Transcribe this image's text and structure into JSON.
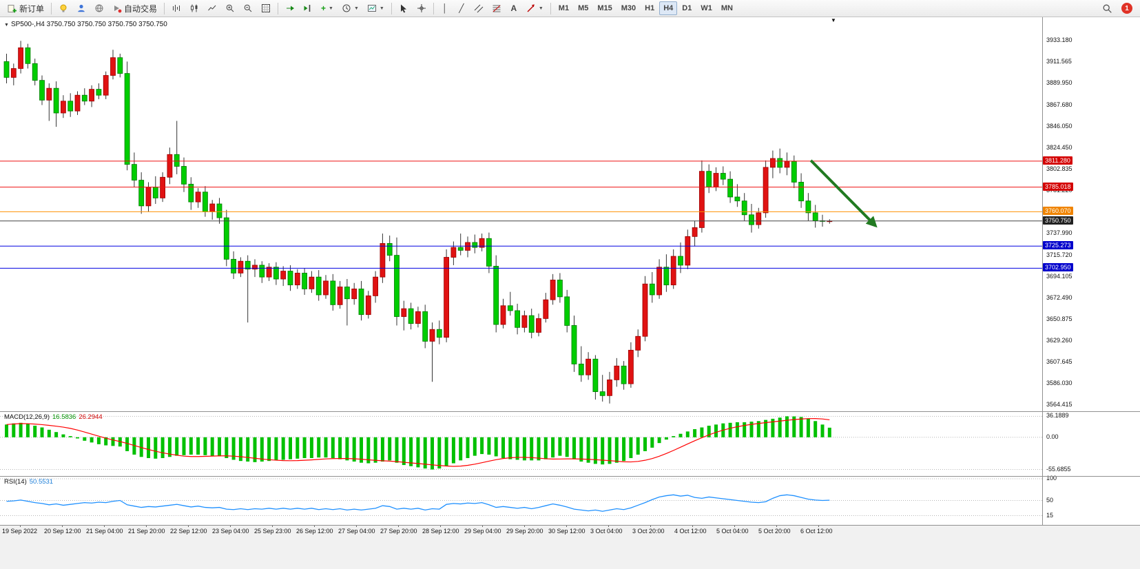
{
  "toolbar": {
    "new_order_label": "新订单",
    "auto_trading_label": "自动交易",
    "timeframes": [
      "M1",
      "M5",
      "M15",
      "M30",
      "H1",
      "H4",
      "D1",
      "W1",
      "MN"
    ],
    "active_timeframe": "H4",
    "badge_count": "1"
  },
  "chart": {
    "symbol": "SP500-",
    "period": "H4",
    "title": "SP500-,H4 3750.750 3750.750 3750.750 3750.750",
    "shift_marker": "▼"
  },
  "indicators": {
    "macd": {
      "name": "MACD(12,26,9)",
      "main_value": "16.5836",
      "signal_value": "26.2944",
      "axis_labels": [
        "36.1889",
        "0.00",
        "-55.6855"
      ],
      "axis_values": [
        36.1889,
        0,
        -55.6855
      ]
    },
    "rsi": {
      "name": "RSI(14)",
      "value": "50.5531",
      "axis_labels": [
        "100",
        "50",
        "15"
      ],
      "axis_values": [
        100,
        50,
        15
      ]
    }
  },
  "chart_data": {
    "type": "candlestick",
    "symbol": "SP500-",
    "timeframe": "H4",
    "ylim": [
      3558.2,
      3956.9
    ],
    "grid": false,
    "colors": {
      "up": "#e01212",
      "down": "#00cd00",
      "up_border": "#9b0000",
      "down_border": "#007a00",
      "wick": "#333333",
      "macd_bar": "#00c000",
      "macd_signal": "#ff0000",
      "rsi_line": "#1e90ff"
    },
    "price_labels": [
      "3933.180",
      "3911.565",
      "3889.950",
      "3867.680",
      "3846.050",
      "3824.450",
      "3802.835",
      "3781.220",
      "3759.605",
      "3737.990",
      "3715.720",
      "3694.105",
      "3672.490",
      "3650.875",
      "3629.260",
      "3607.645",
      "3586.030",
      "3564.415"
    ],
    "time_labels": [
      "19 Sep 2022",
      "20 Sep 12:00",
      "21 Sep 04:00",
      "21 Sep 20:00",
      "22 Sep 12:00",
      "23 Sep 04:00",
      "25 Sep 23:00",
      "26 Sep 12:00",
      "27 Sep 04:00",
      "27 Sep 20:00",
      "28 Sep 12:00",
      "29 Sep 04:00",
      "29 Sep 20:00",
      "30 Sep 12:00",
      "3 Oct 04:00",
      "3 Oct 20:00",
      "4 Oct 12:00",
      "5 Oct 04:00",
      "5 Oct 20:00",
      "6 Oct 12:00"
    ],
    "hlines": [
      {
        "name": "resistance-line-1",
        "label": "3811.280",
        "value": 3811.28,
        "color": "#ee1111",
        "tag_color": "#d40000"
      },
      {
        "name": "resistance-line-2",
        "label": "3785.018",
        "value": 3785.018,
        "color": "#ee1111",
        "tag_color": "#d40000"
      },
      {
        "name": "pivot-line-orange",
        "label": "3760.070",
        "value": 3760.07,
        "color": "#ff9100",
        "tag_color": "#f08400"
      },
      {
        "name": "current-price-line",
        "label": "3750.750",
        "value": 3750.75,
        "color": "#444444",
        "tag_color": "#222222"
      },
      {
        "name": "support-line-1",
        "label": "3725.273",
        "value": 3725.273,
        "color": "#0000e0",
        "tag_color": "#0000cc"
      },
      {
        "name": "support-line-2",
        "label": "3702.950",
        "value": 3702.95,
        "color": "#0000e0",
        "tag_color": "#0000cc"
      }
    ],
    "current_price": 3750.75,
    "annotation_arrow": {
      "from_bar": 113.7,
      "from_price": 3812,
      "to_bar": 122.8,
      "to_price": 3746,
      "color": "#217a21"
    },
    "candles": [
      [
        3912,
        3920,
        3890,
        3896
      ],
      [
        3896,
        3910,
        3888,
        3905
      ],
      [
        3905,
        3933,
        3900,
        3926
      ],
      [
        3926,
        3930,
        3905,
        3910
      ],
      [
        3910,
        3915,
        3888,
        3893
      ],
      [
        3893,
        3898,
        3868,
        3873
      ],
      [
        3873,
        3890,
        3852,
        3885
      ],
      [
        3885,
        3892,
        3846,
        3860
      ],
      [
        3860,
        3878,
        3855,
        3872
      ],
      [
        3872,
        3880,
        3856,
        3862
      ],
      [
        3862,
        3882,
        3858,
        3878
      ],
      [
        3878,
        3885,
        3868,
        3872
      ],
      [
        3872,
        3888,
        3866,
        3884
      ],
      [
        3884,
        3890,
        3874,
        3878
      ],
      [
        3878,
        3902,
        3874,
        3898
      ],
      [
        3898,
        3924,
        3894,
        3916
      ],
      [
        3916,
        3920,
        3896,
        3900
      ],
      [
        3900,
        3912,
        3802,
        3808
      ],
      [
        3808,
        3820,
        3785,
        3792
      ],
      [
        3792,
        3800,
        3758,
        3766
      ],
      [
        3766,
        3790,
        3760,
        3785
      ],
      [
        3785,
        3796,
        3768,
        3774
      ],
      [
        3774,
        3800,
        3770,
        3795
      ],
      [
        3795,
        3825,
        3788,
        3818
      ],
      [
        3818,
        3852,
        3798,
        3806
      ],
      [
        3806,
        3815,
        3780,
        3788
      ],
      [
        3788,
        3795,
        3762,
        3770
      ],
      [
        3770,
        3784,
        3764,
        3780
      ],
      [
        3780,
        3786,
        3755,
        3760
      ],
      [
        3760,
        3772,
        3752,
        3768
      ],
      [
        3768,
        3774,
        3748,
        3754
      ],
      [
        3754,
        3762,
        3705,
        3712
      ],
      [
        3712,
        3720,
        3692,
        3698
      ],
      [
        3698,
        3714,
        3694,
        3710
      ],
      [
        3710,
        3716,
        3648,
        3702
      ],
      [
        3702,
        3712,
        3694,
        3706
      ],
      [
        3706,
        3710,
        3688,
        3694
      ],
      [
        3694,
        3708,
        3690,
        3704
      ],
      [
        3704,
        3709,
        3686,
        3692
      ],
      [
        3692,
        3705,
        3685,
        3700
      ],
      [
        3700,
        3706,
        3680,
        3686
      ],
      [
        3686,
        3702,
        3682,
        3698
      ],
      [
        3698,
        3703,
        3676,
        3682
      ],
      [
        3682,
        3700,
        3678,
        3694
      ],
      [
        3694,
        3701,
        3670,
        3676
      ],
      [
        3676,
        3696,
        3672,
        3690
      ],
      [
        3690,
        3697,
        3660,
        3666
      ],
      [
        3666,
        3690,
        3662,
        3684
      ],
      [
        3684,
        3692,
        3645,
        3672
      ],
      [
        3672,
        3688,
        3666,
        3682
      ],
      [
        3682,
        3690,
        3650,
        3656
      ],
      [
        3656,
        3680,
        3652,
        3675
      ],
      [
        3675,
        3700,
        3668,
        3694
      ],
      [
        3694,
        3738,
        3688,
        3728
      ],
      [
        3728,
        3736,
        3710,
        3716
      ],
      [
        3716,
        3734,
        3645,
        3654
      ],
      [
        3654,
        3670,
        3640,
        3662
      ],
      [
        3662,
        3668,
        3641,
        3647
      ],
      [
        3647,
        3664,
        3643,
        3659
      ],
      [
        3659,
        3666,
        3622,
        3629
      ],
      [
        3629,
        3648,
        3588,
        3641
      ],
      [
        3641,
        3650,
        3626,
        3633
      ],
      [
        3633,
        3722,
        3628,
        3714
      ],
      [
        3714,
        3730,
        3706,
        3724
      ],
      [
        3724,
        3738,
        3716,
        3721
      ],
      [
        3721,
        3735,
        3714,
        3729
      ],
      [
        3729,
        3737,
        3718,
        3724
      ],
      [
        3724,
        3738,
        3720,
        3733
      ],
      [
        3733,
        3739,
        3698,
        3705
      ],
      [
        3705,
        3716,
        3638,
        3646
      ],
      [
        3646,
        3672,
        3642,
        3665
      ],
      [
        3665,
        3679,
        3655,
        3660
      ],
      [
        3660,
        3667,
        3636,
        3643
      ],
      [
        3643,
        3660,
        3638,
        3655
      ],
      [
        3655,
        3662,
        3632,
        3638
      ],
      [
        3638,
        3657,
        3634,
        3652
      ],
      [
        3652,
        3678,
        3648,
        3671
      ],
      [
        3671,
        3697,
        3666,
        3691
      ],
      [
        3691,
        3698,
        3668,
        3674
      ],
      [
        3674,
        3681,
        3638,
        3645
      ],
      [
        3645,
        3655,
        3598,
        3606
      ],
      [
        3606,
        3624,
        3588,
        3595
      ],
      [
        3595,
        3618,
        3590,
        3611
      ],
      [
        3611,
        3615,
        3570,
        3578
      ],
      [
        3578,
        3595,
        3568,
        3574
      ],
      [
        3574,
        3598,
        3566,
        3590
      ],
      [
        3590,
        3612,
        3583,
        3604
      ],
      [
        3604,
        3609,
        3580,
        3586
      ],
      [
        3586,
        3628,
        3582,
        3620
      ],
      [
        3620,
        3641,
        3613,
        3634
      ],
      [
        3634,
        3695,
        3629,
        3687
      ],
      [
        3687,
        3699,
        3668,
        3676
      ],
      [
        3676,
        3712,
        3672,
        3704
      ],
      [
        3704,
        3717,
        3679,
        3686
      ],
      [
        3686,
        3722,
        3682,
        3715
      ],
      [
        3715,
        3729,
        3698,
        3706
      ],
      [
        3706,
        3742,
        3702,
        3735
      ],
      [
        3735,
        3751,
        3725,
        3744
      ],
      [
        3744,
        3812,
        3739,
        3801
      ],
      [
        3801,
        3808,
        3779,
        3785
      ],
      [
        3785,
        3805,
        3781,
        3799
      ],
      [
        3799,
        3806,
        3787,
        3793
      ],
      [
        3793,
        3801,
        3769,
        3775
      ],
      [
        3775,
        3788,
        3765,
        3771
      ],
      [
        3771,
        3779,
        3751,
        3757
      ],
      [
        3757,
        3768,
        3739,
        3747
      ],
      [
        3747,
        3764,
        3743,
        3759
      ],
      [
        3759,
        3812,
        3754,
        3805
      ],
      [
        3805,
        3822,
        3794,
        3814
      ],
      [
        3814,
        3824,
        3799,
        3805
      ],
      [
        3805,
        3820,
        3797,
        3811
      ],
      [
        3811,
        3817,
        3784,
        3790
      ],
      [
        3790,
        3799,
        3764,
        3771
      ],
      [
        3771,
        3779,
        3751,
        3759
      ],
      [
        3759,
        3767,
        3744,
        3751
      ],
      [
        3751,
        3757,
        3745,
        3750.75
      ],
      [
        3750.75,
        3752.5,
        3748,
        3750.75
      ]
    ],
    "macd": {
      "params": [
        12,
        26,
        9
      ],
      "range": [
        -67,
        45
      ],
      "current": 16.5836,
      "signal_current": 26.2944,
      "histogram": [
        22,
        24,
        25,
        23,
        20,
        17,
        13,
        9,
        5,
        2,
        -2,
        -6,
        -9,
        -12,
        -14,
        -15,
        -16,
        -24,
        -30,
        -34,
        -36,
        -37,
        -36,
        -34,
        -32,
        -31,
        -30,
        -30,
        -31,
        -32,
        -33,
        -36,
        -39,
        -41,
        -42,
        -43,
        -42,
        -41,
        -40,
        -39,
        -38,
        -37,
        -36,
        -36,
        -35,
        -35,
        -36,
        -38,
        -40,
        -42,
        -44,
        -45,
        -44,
        -42,
        -40,
        -44,
        -48,
        -50,
        -52,
        -54,
        -55.7,
        -54,
        -50,
        -45,
        -40,
        -36,
        -32,
        -29,
        -30,
        -33,
        -36,
        -38,
        -39,
        -40,
        -40,
        -40,
        -38,
        -35,
        -32,
        -34,
        -38,
        -42,
        -44,
        -46,
        -47,
        -46,
        -44,
        -41,
        -36,
        -30,
        -24,
        -18,
        -10,
        -4,
        2,
        6,
        10,
        14,
        17,
        20,
        22,
        24,
        25,
        26,
        26,
        27,
        28,
        30,
        32,
        34,
        36.2,
        36,
        35,
        32,
        28,
        22,
        16.58
      ]
    },
    "rsi": {
      "period": 14,
      "range": [
        0,
        100
      ],
      "current": 50.5531,
      "values": [
        48,
        49,
        51,
        48,
        45,
        43,
        40,
        42,
        39,
        41,
        43,
        45,
        44,
        46,
        45,
        48,
        50,
        40,
        37,
        34,
        36,
        35,
        37,
        39,
        41,
        38,
        35,
        37,
        34,
        33,
        34,
        30,
        29,
        31,
        29,
        31,
        30,
        32,
        30,
        32,
        30,
        32,
        30,
        32,
        29,
        31,
        29,
        31,
        28,
        30,
        28,
        30,
        32,
        38,
        36,
        30,
        32,
        30,
        32,
        28,
        31,
        30,
        41,
        43,
        42,
        44,
        43,
        45,
        40,
        34,
        36,
        34,
        32,
        34,
        31,
        34,
        38,
        42,
        39,
        35,
        30,
        28,
        26,
        28,
        25,
        28,
        31,
        29,
        33,
        39,
        45,
        52,
        58,
        61,
        63,
        60,
        62,
        57,
        55,
        58,
        56,
        54,
        52,
        50,
        48,
        46,
        45,
        47,
        55,
        61,
        63,
        61,
        57,
        53,
        51,
        50,
        50.55
      ]
    }
  }
}
